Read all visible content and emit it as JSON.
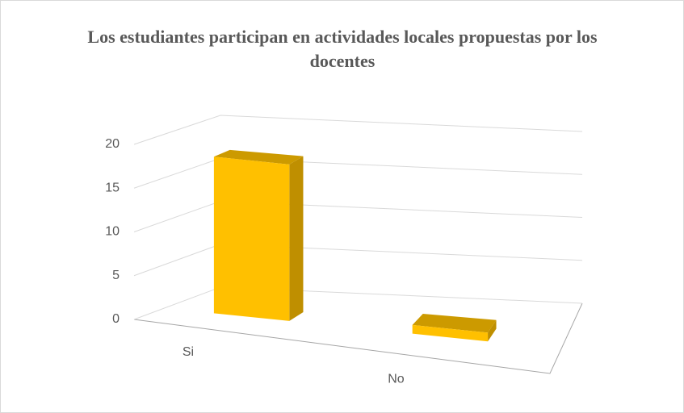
{
  "chart_data": {
    "type": "bar3d",
    "title": "Los estudiantes participan en actividades locales propuestas por los docentes",
    "categories": [
      "Si",
      "No"
    ],
    "values": [
      18,
      1
    ],
    "color": "#ffc000",
    "ylim": [
      0,
      20
    ],
    "yticks": [
      0,
      5,
      10,
      15,
      20
    ],
    "grid": true
  }
}
